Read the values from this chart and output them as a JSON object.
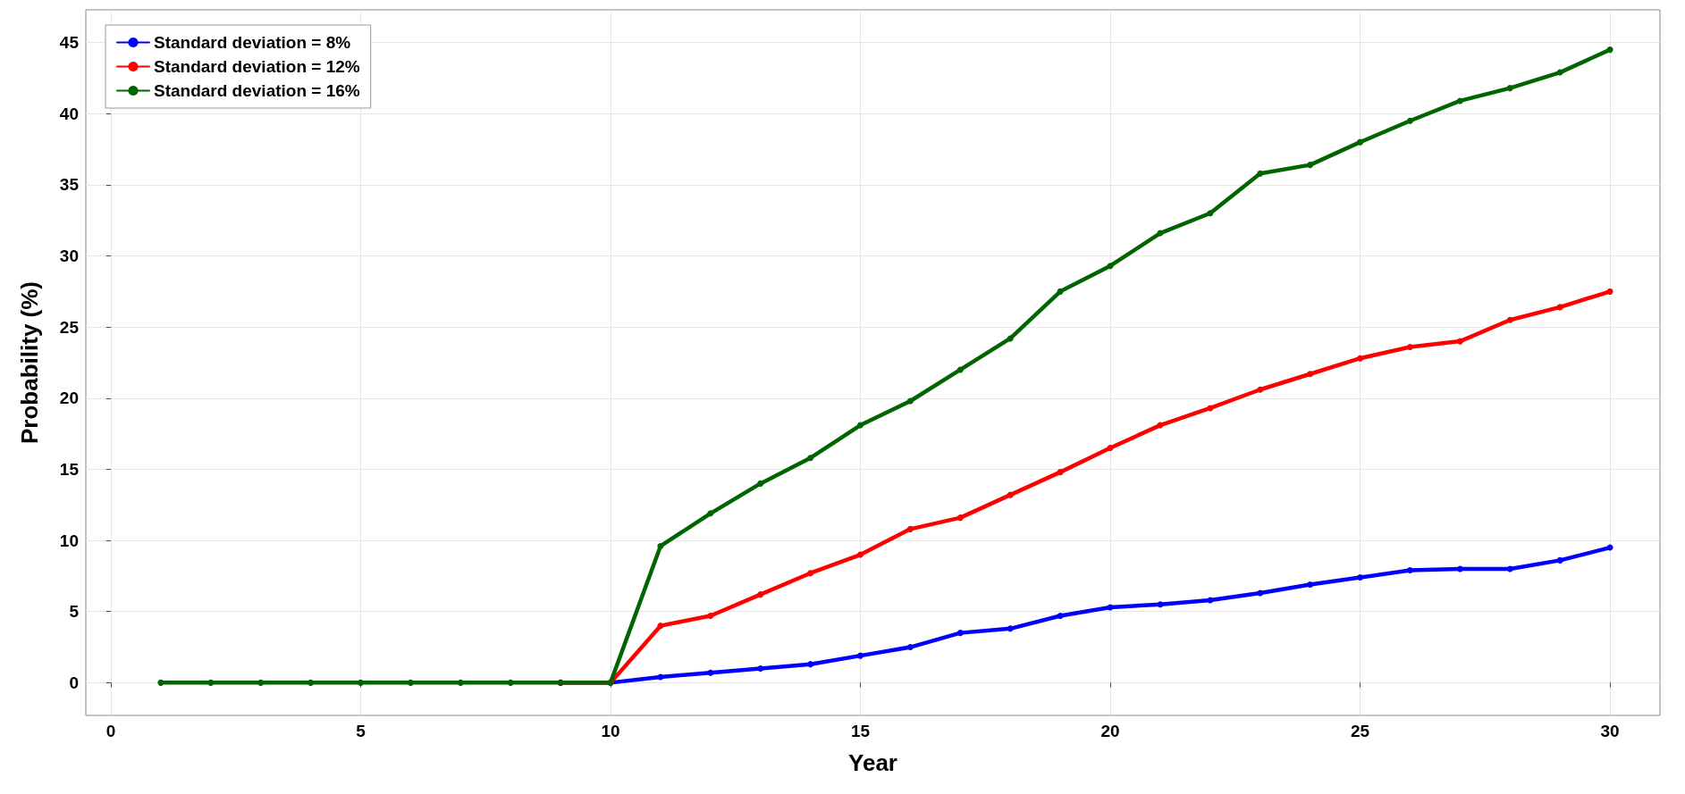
{
  "chart_data": {
    "type": "line",
    "xlabel": "Year",
    "ylabel": "Probability (%)",
    "x": [
      1,
      2,
      3,
      4,
      5,
      6,
      7,
      8,
      9,
      10,
      11,
      12,
      13,
      14,
      15,
      16,
      17,
      18,
      19,
      20,
      21,
      22,
      23,
      24,
      25,
      26,
      27,
      28,
      29,
      30
    ],
    "xlim": [
      -0.5,
      31
    ],
    "xticks": [
      0,
      5,
      10,
      15,
      20,
      25,
      30
    ],
    "ylim": [
      -2.3,
      47.3
    ],
    "yticks": [
      0,
      5,
      10,
      15,
      20,
      25,
      30,
      35,
      40,
      45
    ],
    "grid": true,
    "legend": "top left",
    "marker": "circle",
    "line_style": "solid",
    "series": [
      {
        "name": "Standard deviation = 8%",
        "color": "#0000ff",
        "values": [
          null,
          null,
          null,
          null,
          null,
          null,
          null,
          null,
          0,
          0,
          0.4,
          0.7,
          1.0,
          1.3,
          1.9,
          2.5,
          3.5,
          3.8,
          4.7,
          5.3,
          5.5,
          5.8,
          6.3,
          6.9,
          7.4,
          7.9,
          8.0,
          8.0,
          8.6,
          9.5
        ]
      },
      {
        "name": "Standard deviation = 12%",
        "color": "#ff0000",
        "values": [
          null,
          null,
          null,
          null,
          null,
          null,
          null,
          null,
          0,
          0,
          4.0,
          4.7,
          6.2,
          7.7,
          9.0,
          10.8,
          11.6,
          13.2,
          14.8,
          16.5,
          18.1,
          19.3,
          20.6,
          21.7,
          22.8,
          23.6,
          24.0,
          25.5,
          26.4,
          27.5
        ]
      },
      {
        "name": "Standard deviation = 16%",
        "color": "#006400",
        "values": [
          0,
          0,
          0,
          0,
          0,
          0,
          0,
          0,
          0,
          0,
          9.6,
          11.9,
          14.0,
          15.8,
          18.1,
          19.8,
          22.0,
          24.2,
          27.5,
          29.3,
          31.6,
          33.0,
          35.8,
          36.4,
          38.0,
          39.5,
          40.9,
          41.8,
          42.9,
          44.5
        ]
      }
    ]
  }
}
